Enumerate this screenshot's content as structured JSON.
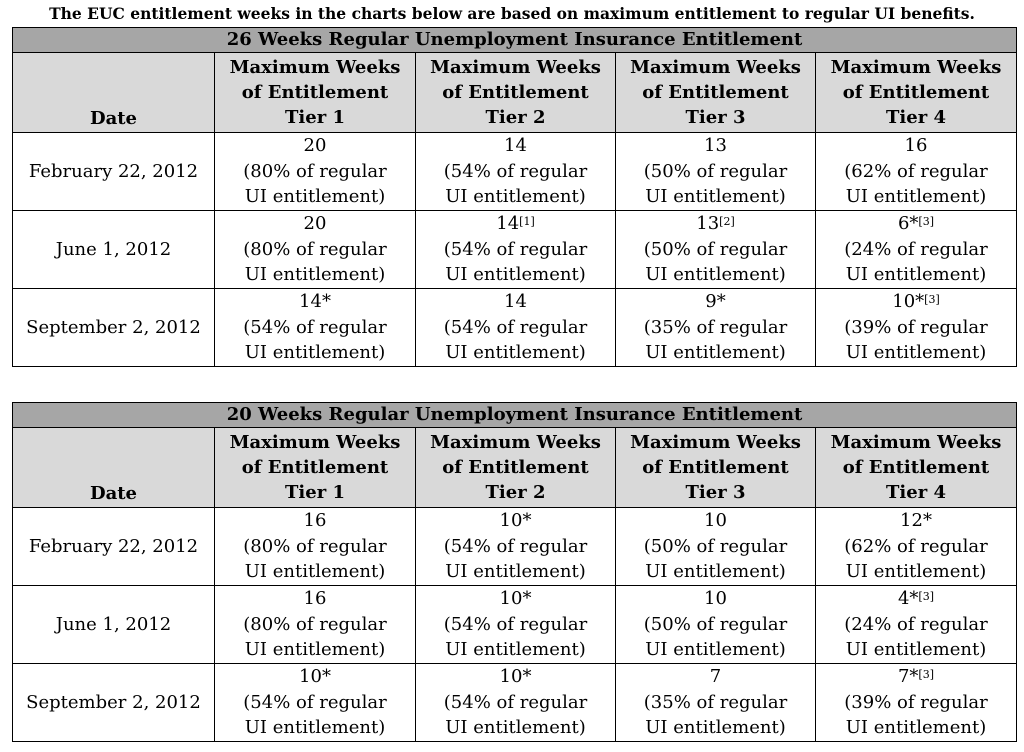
{
  "intro": "The EUC entitlement weeks in the charts below are based on maximum entitlement to regular UI benefits.",
  "header": {
    "date": "Date",
    "tier_line1": "Maximum Weeks",
    "tier_line2": "of Entitlement",
    "tiers": [
      "Tier 1",
      "Tier 2",
      "Tier 3",
      "Tier 4"
    ]
  },
  "unit_line2": "UI entitlement)",
  "tables": [
    {
      "title": "26 Weeks Regular Unemployment Insurance Entitlement",
      "rows": [
        {
          "date": "February 22, 2012",
          "cells": [
            {
              "weeks": "20",
              "sup": "",
              "pct": "(80% of regular"
            },
            {
              "weeks": "14",
              "sup": "",
              "pct": "(54% of regular"
            },
            {
              "weeks": "13",
              "sup": "",
              "pct": "(50% of regular"
            },
            {
              "weeks": "16",
              "sup": "",
              "pct": "(62% of regular"
            }
          ]
        },
        {
          "date": "June 1, 2012",
          "cells": [
            {
              "weeks": "20",
              "sup": "",
              "pct": "(80% of regular"
            },
            {
              "weeks": "14",
              "sup": "[1]",
              "pct": "(54% of regular"
            },
            {
              "weeks": "13",
              "sup": "[2]",
              "pct": "(50% of regular"
            },
            {
              "weeks": "6*",
              "sup": "[3]",
              "pct": "(24% of regular"
            }
          ]
        },
        {
          "date": "September 2, 2012",
          "cells": [
            {
              "weeks": "14*",
              "sup": "",
              "pct": "(54% of regular"
            },
            {
              "weeks": "14",
              "sup": "",
              "pct": "(54% of regular"
            },
            {
              "weeks": "9*",
              "sup": "",
              "pct": "(35% of regular"
            },
            {
              "weeks": "10*",
              "sup": "[3]",
              "pct": "(39% of regular"
            }
          ]
        }
      ]
    },
    {
      "title": "20 Weeks Regular Unemployment Insurance Entitlement",
      "rows": [
        {
          "date": "February 22, 2012",
          "cells": [
            {
              "weeks": "16",
              "sup": "",
              "pct": "(80% of regular"
            },
            {
              "weeks": "10*",
              "sup": "",
              "pct": "(54% of regular"
            },
            {
              "weeks": "10",
              "sup": "",
              "pct": "(50% of regular"
            },
            {
              "weeks": "12*",
              "sup": "",
              "pct": "(62% of regular"
            }
          ]
        },
        {
          "date": "June 1, 2012",
          "cells": [
            {
              "weeks": "16",
              "sup": "",
              "pct": "(80% of regular"
            },
            {
              "weeks": "10*",
              "sup": "",
              "pct": "(54% of regular"
            },
            {
              "weeks": "10",
              "sup": "",
              "pct": "(50% of regular"
            },
            {
              "weeks": "4*",
              "sup": "[3]",
              "pct": "(24% of regular"
            }
          ]
        },
        {
          "date": "September 2, 2012",
          "cells": [
            {
              "weeks": "10*",
              "sup": "",
              "pct": "(54% of regular"
            },
            {
              "weeks": "10*",
              "sup": "",
              "pct": "(54% of regular"
            },
            {
              "weeks": "7",
              "sup": "",
              "pct": "(35% of regular"
            },
            {
              "weeks": "7*",
              "sup": "[3]",
              "pct": "(39% of regular"
            }
          ]
        }
      ]
    }
  ]
}
